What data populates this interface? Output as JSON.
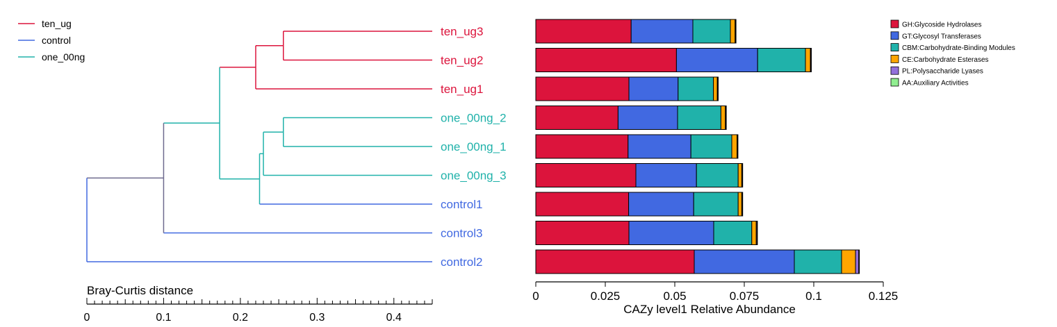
{
  "groups_legend": [
    {
      "name": "ten_ug",
      "color": "#dc143c"
    },
    {
      "name": "control",
      "color": "#4169e1"
    },
    {
      "name": "one_00ng",
      "color": "#20b2aa"
    }
  ],
  "dendrogram": {
    "axis_label": "Bray-Curtis distance",
    "ticks": [
      "0",
      "0.1",
      "0.2",
      "0.3",
      "0.4"
    ],
    "xlim": [
      0,
      0.45
    ],
    "trunk_color": "#6e6a8e",
    "leaves": [
      {
        "label": "ten_ug3",
        "group": "ten_ug"
      },
      {
        "label": "ten_ug2",
        "group": "ten_ug"
      },
      {
        "label": "ten_ug1",
        "group": "ten_ug"
      },
      {
        "label": "one_00ng_2",
        "group": "one_00ng"
      },
      {
        "label": "one_00ng_1",
        "group": "one_00ng"
      },
      {
        "label": "one_00ng_3",
        "group": "one_00ng"
      },
      {
        "label": "control1",
        "group": "control"
      },
      {
        "label": "control3",
        "group": "control"
      },
      {
        "label": "control2",
        "group": "control"
      }
    ],
    "merges": [
      {
        "height": 0.256,
        "children": [
          "L0",
          "L1"
        ],
        "group": "ten_ug"
      },
      {
        "height": 0.22,
        "children": [
          "N0",
          "L2"
        ],
        "group": "ten_ug"
      },
      {
        "height": 0.256,
        "children": [
          "L3",
          "L4"
        ],
        "group": "one_00ng"
      },
      {
        "height": 0.23,
        "children": [
          "N2",
          "L5"
        ],
        "group": "one_00ng"
      },
      {
        "height": 0.225,
        "children": [
          "N3",
          "L6"
        ],
        "group": "one_00ng"
      },
      {
        "height": 0.173,
        "children": [
          "N1",
          "N4"
        ],
        "group": "one_00ng"
      },
      {
        "height": 0.1,
        "children": [
          "N5",
          "L7"
        ],
        "group": "trunk"
      },
      {
        "height": 0.0,
        "children": [
          "N6",
          "L8"
        ],
        "group": "control"
      }
    ]
  },
  "chart_data": {
    "type": "bar",
    "stacked": true,
    "orientation": "horizontal",
    "xlabel": "CAZy level1 Relative Abundance",
    "xlim": [
      0,
      0.125
    ],
    "xticks": [
      "0",
      "0.025",
      "0.05",
      "0.075",
      "0.1",
      "0.125"
    ],
    "categories": [
      "ten_ug3",
      "ten_ug2",
      "ten_ug1",
      "one_00ng_2",
      "one_00ng_1",
      "one_00ng_3",
      "control1",
      "control3",
      "control2"
    ],
    "series": [
      {
        "name": "GH:Glycoside Hydrolases",
        "color": "#dc143c",
        "values": [
          0.0343,
          0.0506,
          0.0335,
          0.0296,
          0.0332,
          0.036,
          0.0334,
          0.0335,
          0.057
        ]
      },
      {
        "name": "GT:Glycosyl Transferases",
        "color": "#4169e1",
        "values": [
          0.0222,
          0.0292,
          0.0177,
          0.0214,
          0.0226,
          0.0218,
          0.0234,
          0.0305,
          0.036
        ]
      },
      {
        "name": "CBM:Carbohydrate-Binding Modules",
        "color": "#20b2aa",
        "values": [
          0.0135,
          0.0172,
          0.0127,
          0.0156,
          0.0147,
          0.015,
          0.016,
          0.0137,
          0.017
        ]
      },
      {
        "name": "CE:Carbohydrate Esterases",
        "color": "#ffa500",
        "values": [
          0.0017,
          0.0018,
          0.0014,
          0.0016,
          0.0019,
          0.0013,
          0.0013,
          0.0016,
          0.005
        ]
      },
      {
        "name": "PL:Polysaccharide Lyases",
        "color": "#9370db",
        "values": [
          0.0002,
          0.0002,
          0.0002,
          0.0002,
          0.0002,
          0.0002,
          0.0002,
          0.0003,
          0.0012
        ]
      },
      {
        "name": "AA:Auxiliary Activities",
        "color": "#90ee90",
        "values": [
          0.0001,
          0.0001,
          0.0001,
          0.0001,
          0.0001,
          0.0001,
          0.0001,
          0.0001,
          0.0002
        ]
      }
    ]
  }
}
